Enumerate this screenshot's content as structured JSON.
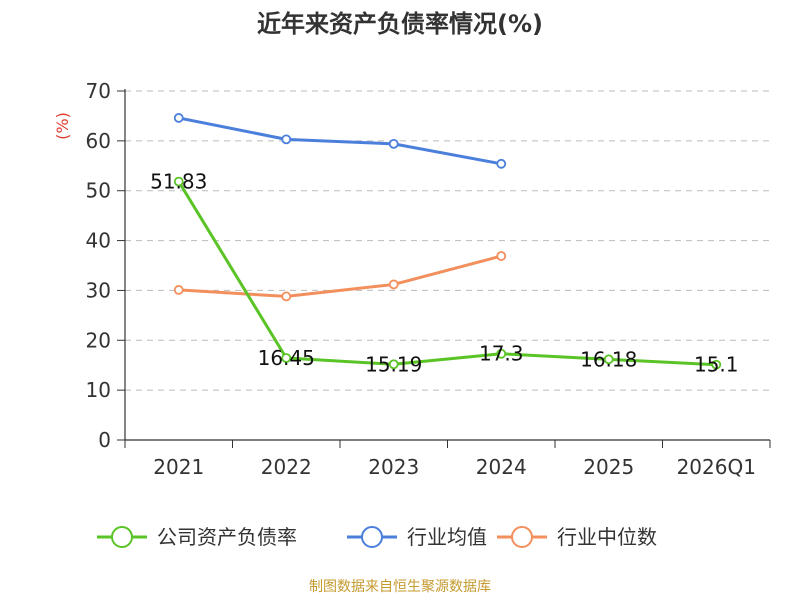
{
  "chart_data": {
    "type": "line",
    "title": "近年来资产负债率情况(%)",
    "ylabel": "(%)",
    "xlabel": "",
    "ylim": [
      0,
      70
    ],
    "yticks": [
      0,
      10,
      20,
      30,
      40,
      50,
      60,
      70
    ],
    "grid": true,
    "legend_position": "bottom",
    "categories": [
      "2021",
      "2022",
      "2023",
      "2024",
      "2025",
      "2026Q1"
    ],
    "series": [
      {
        "name": "公司资产负债率",
        "color": "#5ac426",
        "values": [
          51.83,
          16.45,
          15.19,
          17.3,
          16.18,
          15.1
        ],
        "data_labels": [
          "51.83",
          "16.45",
          "15.19",
          "17.3",
          "16.18",
          "15.1"
        ]
      },
      {
        "name": "行业均值",
        "color": "#4a7fdc",
        "values": [
          64.6,
          60.3,
          59.4,
          55.4,
          null,
          null
        ]
      },
      {
        "name": "行业中位数",
        "color": "#f28f5c",
        "values": [
          30.1,
          28.8,
          31.2,
          36.9,
          null,
          null
        ]
      }
    ]
  },
  "footer": {
    "source": "制图数据来自恒生聚源数据库",
    "color": "#c59a2e"
  },
  "style": {
    "axis_color": "#333333",
    "grid_color": "#bbbbbb",
    "unit_color": "#e03c31"
  }
}
